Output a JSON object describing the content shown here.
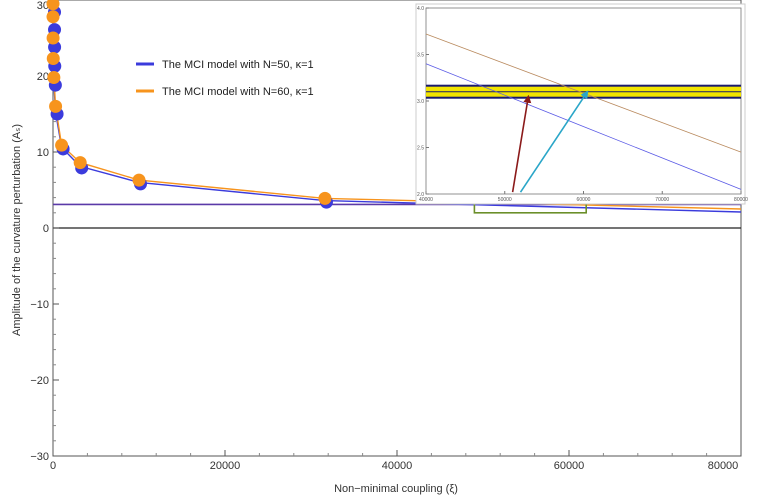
{
  "chart_data": [
    {
      "type": "line",
      "xlabel": "Non−minimal coupling (ξ)",
      "ylabel": "Amplitude of the curvature perturbation (Aₛ)",
      "xlim": [
        0,
        80000
      ],
      "ylim": [
        -30,
        30
      ],
      "x_ticks": [
        0,
        20000,
        40000,
        60000,
        80000
      ],
      "x_tick_labels": [
        "0",
        "20000",
        "40000",
        "60000",
        "80000"
      ],
      "y_ticks": [
        -30,
        -20,
        -10,
        0,
        10,
        20,
        30
      ],
      "y_tick_labels": [
        "−30",
        "−20",
        "−10",
        "0",
        "10",
        "20",
        "30"
      ],
      "legend_position": "top-left",
      "reference_line": {
        "y": 3.1,
        "color": "#5b3aa8"
      },
      "series": [
        {
          "name": "The MCI model with N=50, κ=1",
          "color": "#3b3bdc",
          "x": [
            1,
            3,
            10,
            30,
            100,
            300,
            1000,
            3162,
            10000,
            31623,
            80000
          ],
          "y": [
            28.6,
            26.3,
            24.0,
            21.5,
            19.0,
            15.2,
            10.6,
            8.1,
            6.0,
            3.6,
            2.1
          ]
        },
        {
          "name": "The MCI model with N=60, κ=1",
          "color": "#f7941d",
          "x": [
            1,
            3,
            10,
            30,
            100,
            300,
            1000,
            3162,
            10000,
            31623,
            80000
          ],
          "y": [
            29.5,
            27.8,
            25.0,
            22.3,
            19.8,
            16.0,
            10.9,
            8.6,
            6.3,
            3.9,
            2.5
          ]
        }
      ],
      "markers": {
        "x": [
          1,
          3,
          10,
          30,
          100,
          300,
          1000,
          3162,
          10000,
          31623
        ]
      },
      "highlight_box": {
        "x": [
          49000,
          62000
        ],
        "y": [
          2.0,
          4.2
        ],
        "color": "#6b8f2a"
      }
    },
    {
      "type": "line",
      "title": "",
      "xlim": [
        40000,
        80000
      ],
      "ylim": [
        2.0,
        4.0
      ],
      "x_ticks": [
        40000,
        50000,
        60000,
        70000,
        80000
      ],
      "x_tick_labels": [
        "40000",
        "50000",
        "60000",
        "70000",
        "80000"
      ],
      "y_ticks": [
        2.0,
        2.5,
        3.0,
        3.5,
        4.0
      ],
      "y_tick_labels": [
        "2.0",
        "2.5",
        "3.0",
        "3.5",
        "4.0"
      ],
      "band": {
        "y": 3.1,
        "colors": [
          "#f2e400",
          "#1a1a6e"
        ]
      },
      "series": [
        {
          "color": "#5a5ae6",
          "x": [
            40000,
            80000
          ],
          "y": [
            3.4,
            2.05
          ]
        },
        {
          "color": "#b98a5e",
          "x": [
            40000,
            80000
          ],
          "y": [
            3.72,
            2.45
          ]
        }
      ],
      "arrows": [
        {
          "color": "#8b1a1a",
          "from": [
            51000,
            2.02
          ],
          "to": [
            53000,
            3.05
          ]
        },
        {
          "color": "#2aa6c8",
          "from": [
            52000,
            2.02
          ],
          "to": [
            60500,
            3.1
          ]
        }
      ]
    }
  ]
}
